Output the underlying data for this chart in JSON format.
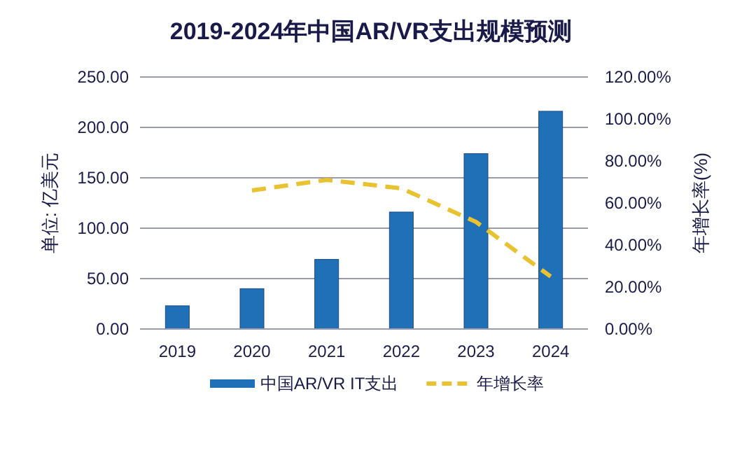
{
  "chart_data": {
    "type": "bar",
    "title": "2019-2024年中国AR/VR支出规模预测",
    "ylabel": "单位: 亿美元",
    "y2label": "年增长率(%)",
    "categories": [
      "2019",
      "2020",
      "2021",
      "2022",
      "2023",
      "2024"
    ],
    "series": [
      {
        "name": "中国AR/VR IT支出",
        "color": "#2070b8",
        "values": [
          23,
          40,
          69,
          116,
          174,
          216
        ]
      },
      {
        "name": "年增长率",
        "type": "line",
        "axis": "y2",
        "color": "#e8c230",
        "line_style": "dashed",
        "values": [
          null,
          66,
          71,
          67,
          51,
          25
        ]
      }
    ],
    "ylim": [
      0,
      250
    ],
    "yticks": [
      {
        "value": 0,
        "label": "0.00"
      },
      {
        "value": 50,
        "label": "50.00"
      },
      {
        "value": 100,
        "label": "100.00"
      },
      {
        "value": 150,
        "label": "150.00"
      },
      {
        "value": 200,
        "label": "200.00"
      },
      {
        "value": 250,
        "label": "250.00"
      }
    ],
    "y2lim": [
      0,
      120
    ],
    "y2ticks": [
      {
        "value": 0,
        "label": "0.00%"
      },
      {
        "value": 20,
        "label": "20.00%"
      },
      {
        "value": 40,
        "label": "40.00%"
      },
      {
        "value": 60,
        "label": "60.00%"
      },
      {
        "value": 80,
        "label": "80.00%"
      },
      {
        "value": 100,
        "label": "100.00%"
      },
      {
        "value": 120,
        "label": "120.00%"
      }
    ],
    "grid": "y",
    "legend": "bottom"
  }
}
